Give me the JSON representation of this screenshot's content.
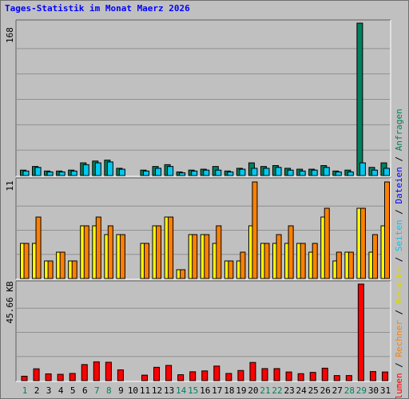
{
  "title": "Tages-Statistik im Monat Maerz 2026",
  "days": [
    "1",
    "2",
    "3",
    "4",
    "5",
    "6",
    "7",
    "8",
    "9",
    "10",
    "11",
    "12",
    "13",
    "14",
    "15",
    "16",
    "17",
    "18",
    "19",
    "20",
    "21",
    "22",
    "23",
    "24",
    "25",
    "26",
    "27",
    "28",
    "29",
    "30",
    "31"
  ],
  "day_colors": [
    "#00805c",
    "#000000",
    "#000000",
    "#000000",
    "#000000",
    "#000000",
    "#00805c",
    "#00805c",
    "#000000",
    "#000000",
    "#000000",
    "#000000",
    "#000000",
    "#00805c",
    "#00805c",
    "#000000",
    "#000000",
    "#000000",
    "#000000",
    "#000000",
    "#00805c",
    "#00805c",
    "#000000",
    "#000000",
    "#000000",
    "#000000",
    "#000000",
    "#00805c",
    "#00805c",
    "#000000",
    "#000000"
  ],
  "axis_labels": {
    "top_max": "168",
    "mid_max": "11",
    "bottom_max": "45.66 KB"
  },
  "legend": {
    "anfragen": "Anfragen",
    "dateien": "Dateien",
    "seiten": "Seiten",
    "besuche": "Besuche",
    "rechner": "Rechner",
    "volumen": "Volumen",
    "sep": " / "
  },
  "colors": {
    "anfragen": "#00805c",
    "dateien": "#00c8f0",
    "seiten": "#00e0ff",
    "besuche": "#ffff00",
    "rechner": "#ff8000",
    "volumen": "#ff0000",
    "background": "#c0c0c0",
    "title": "#0000ff"
  },
  "chart_data": [
    {
      "type": "bar",
      "series": [
        {
          "name": "Anfragen",
          "values": [
            6,
            10,
            5,
            5,
            6,
            14,
            16,
            17,
            8,
            0,
            6,
            10,
            12,
            4,
            6,
            7,
            10,
            5,
            8,
            14,
            10,
            11,
            8,
            7,
            7,
            11,
            5,
            6,
            168,
            9,
            14
          ]
        },
        {
          "name": "Dateien",
          "values": [
            5,
            9,
            4,
            4,
            5,
            12,
            14,
            15,
            7,
            0,
            5,
            8,
            10,
            3,
            5,
            6,
            6,
            4,
            7,
            8,
            8,
            9,
            6,
            5,
            6,
            9,
            4,
            4,
            14,
            6,
            8
          ]
        }
      ],
      "ylim": [
        0,
        168
      ]
    },
    {
      "type": "bar",
      "series": [
        {
          "name": "Seiten",
          "values": [
            4,
            4,
            2,
            3,
            2,
            6,
            6,
            5,
            5,
            0,
            4,
            6,
            7,
            1,
            5,
            5,
            4,
            2,
            2,
            6,
            4,
            4,
            4,
            4,
            3,
            7,
            2,
            3,
            8,
            3,
            6
          ]
        },
        {
          "name": "Besuche",
          "values": [
            4,
            7,
            2,
            3,
            2,
            6,
            7,
            6,
            5,
            0,
            4,
            6,
            7,
            1,
            5,
            5,
            6,
            2,
            3,
            11,
            4,
            5,
            6,
            4,
            4,
            8,
            3,
            3,
            8,
            5,
            11
          ]
        }
      ],
      "ylim": [
        0,
        11
      ]
    },
    {
      "type": "bar",
      "series": [
        {
          "name": "Volumen",
          "values": [
            2.1,
            5.6,
            3.2,
            3.0,
            3.4,
            7.6,
            8.9,
            8.7,
            5.1,
            0,
            2.6,
            6.3,
            7.2,
            2.8,
            4.2,
            4.6,
            6.9,
            3.4,
            4.8,
            8.6,
            5.7,
            5.7,
            4.1,
            3.3,
            3.9,
            5.9,
            2.4,
            2.4,
            45.66,
            4.3,
            4.1
          ]
        }
      ],
      "ylim": [
        0,
        45.66
      ]
    }
  ]
}
